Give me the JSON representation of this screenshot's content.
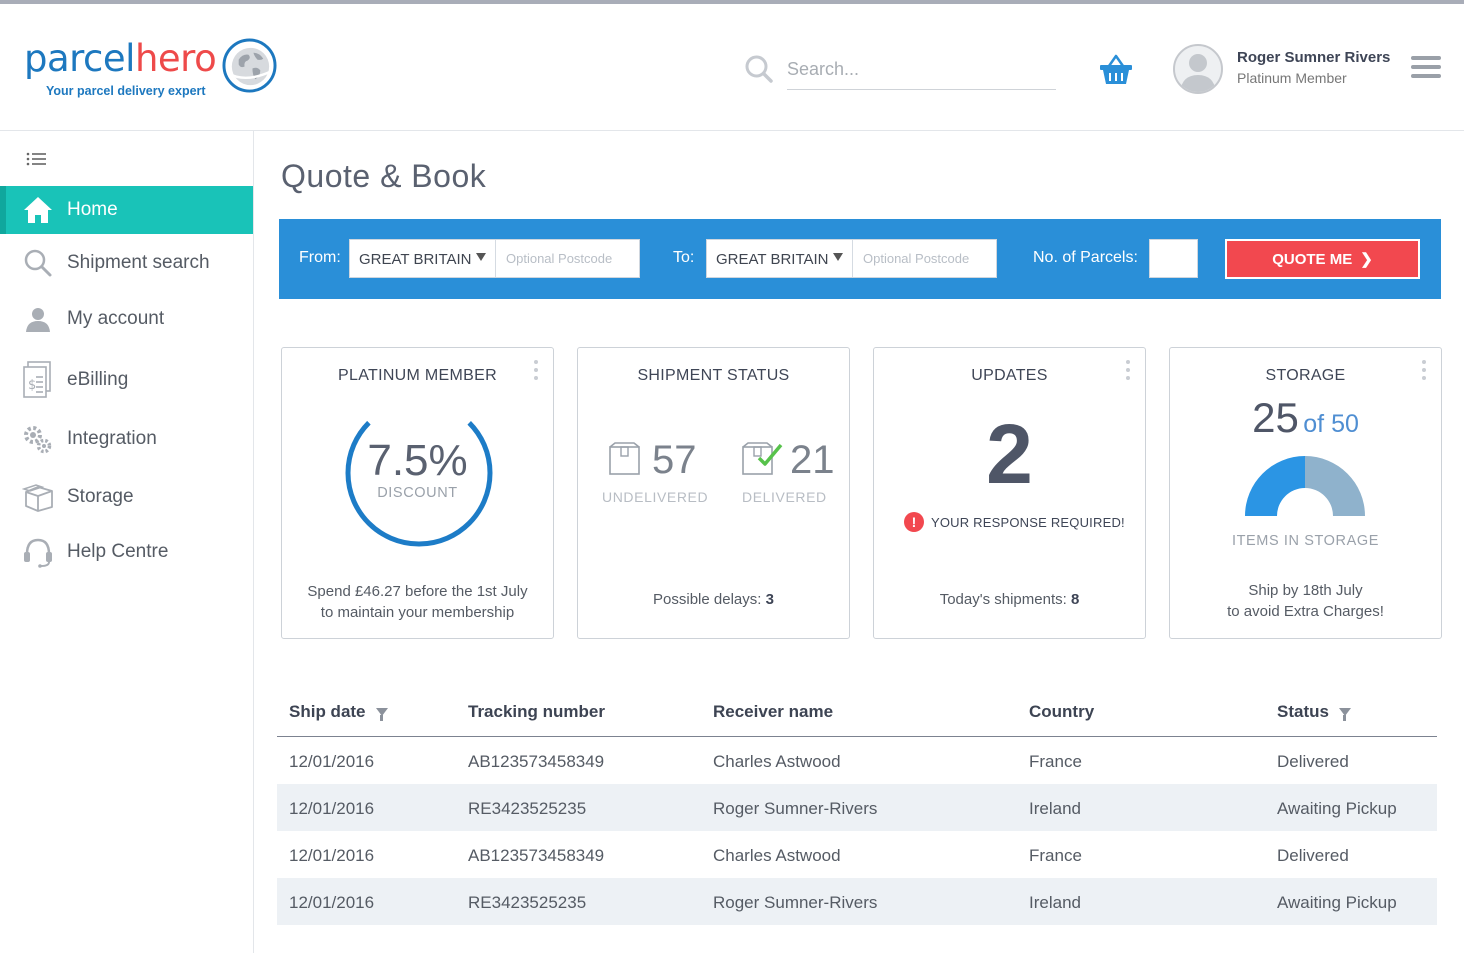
{
  "brand": {
    "name_part1": "parcel",
    "name_part2": "hero",
    "tagline": "Your parcel delivery expert",
    "primary_color": "#1d78bf",
    "accent_color": "#ee4a4a"
  },
  "header": {
    "search_placeholder": "Search...",
    "user": {
      "name": "Roger Sumner Rivers",
      "tier": "Platinum Member"
    }
  },
  "sidebar": {
    "items": [
      {
        "label": "Home",
        "icon": "home-icon",
        "active": true
      },
      {
        "label": "Shipment search",
        "icon": "search-icon"
      },
      {
        "label": "My account",
        "icon": "user-icon"
      },
      {
        "label": "eBilling",
        "icon": "invoice-icon"
      },
      {
        "label": "Integration",
        "icon": "gears-icon"
      },
      {
        "label": "Storage",
        "icon": "box-icon"
      },
      {
        "label": "Help Centre",
        "icon": "headset-icon"
      }
    ]
  },
  "page": {
    "title": "Quote & Book"
  },
  "quote": {
    "from_label": "From:",
    "from_country": "GREAT BRITAIN",
    "from_postcode_placeholder": "Optional Postcode",
    "to_label": "To:",
    "to_country": "GREAT BRITAIN",
    "to_postcode_placeholder": "Optional Postcode",
    "parcels_label": "No. of Parcels:",
    "parcels_value": "",
    "button_label": "QUOTE ME",
    "bar_color": "#2a8fd8",
    "button_color": "#f2484f"
  },
  "cards": {
    "membership": {
      "title": "PLATINUM MEMBER",
      "discount": "7.5%",
      "discount_label": "DISCOUNT",
      "ring_fraction": 0.75,
      "footer_line1": "Spend £46.27 before the 1st July",
      "footer_line2": "to maintain your membership"
    },
    "shipment_status": {
      "title": "SHIPMENT STATUS",
      "undelivered_count": "57",
      "undelivered_label": "UNDELIVERED",
      "delivered_count": "21",
      "delivered_label": "DELIVERED",
      "footer_prefix": "Possible delays:",
      "footer_value": "3"
    },
    "updates": {
      "title": "UPDATES",
      "count": "2",
      "alert": "YOUR RESPONSE REQUIRED!",
      "footer_prefix": "Today's shipments:",
      "footer_value": "8"
    },
    "storage": {
      "title": "STORAGE",
      "used": "25",
      "of_total": "of 50",
      "used_fraction": 0.5,
      "label": "ITEMS IN STORAGE",
      "footer_line1": "Ship by 18th July",
      "footer_line2": "to avoid Extra Charges!"
    }
  },
  "table": {
    "columns": [
      "Ship date",
      "Tracking number",
      "Receiver name",
      "Country",
      "Status"
    ],
    "rows": [
      [
        "12/01/2016",
        "AB123573458349",
        "Charles Astwood",
        "France",
        "Delivered"
      ],
      [
        "12/01/2016",
        "RE3423525235",
        "Roger Sumner-Rivers",
        "Ireland",
        "Awaiting Pickup"
      ],
      [
        "12/01/2016",
        "AB123573458349",
        "Charles Astwood",
        "France",
        "Delivered"
      ],
      [
        "12/01/2016",
        "RE3423525235",
        "Roger Sumner-Rivers",
        "Ireland",
        "Awaiting Pickup"
      ]
    ]
  }
}
